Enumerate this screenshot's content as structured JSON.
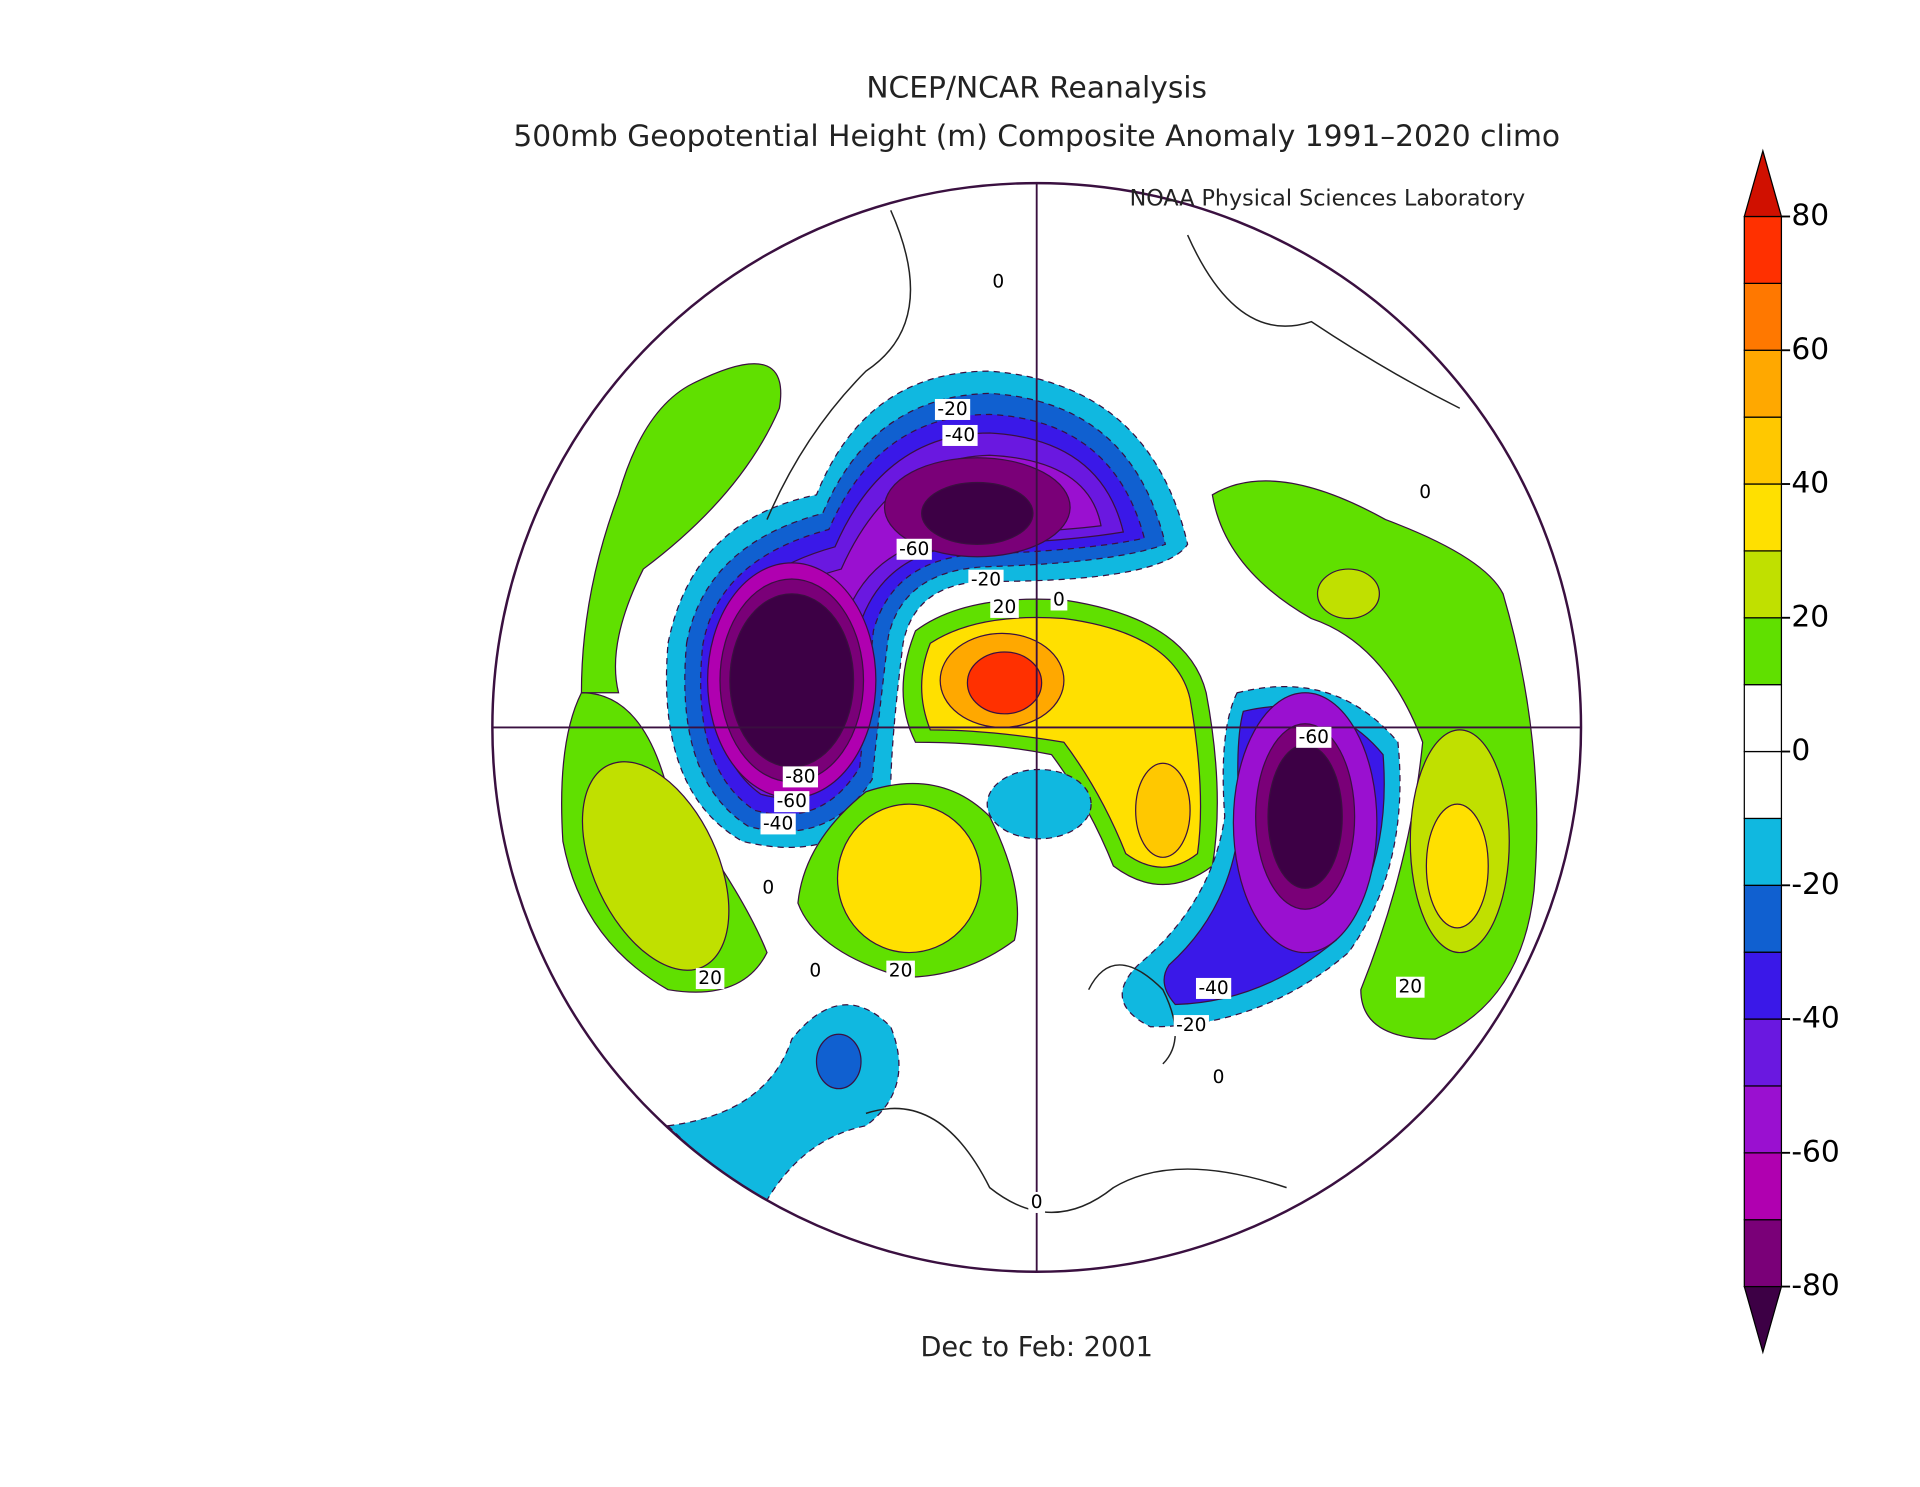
{
  "map": {
    "title": "NCEP/NCAR Reanalysis",
    "subtitle": "500mb Geopotential Height (m) Composite Anomaly 1991–2020 climo",
    "credit": "NOAA Physical Sciences Laboratory",
    "caption": "Dec to Feb: 2001",
    "contour_labels": [
      -20,
      -40,
      -60,
      -20,
      20,
      0,
      -80,
      -60,
      -40,
      0,
      20,
      20,
      -60,
      -40,
      -20,
      0,
      20,
      0,
      0,
      0,
      0
    ],
    "colorbar": {
      "levels": [
        -80,
        -70,
        -60,
        -50,
        -40,
        -30,
        -20,
        -10,
        0,
        10,
        20,
        30,
        40,
        50,
        60,
        70,
        80
      ],
      "colors": [
        "#7a0078",
        "#b000b0",
        "#9a10d0",
        "#6a18e0",
        "#3a18e8",
        "#1060d0",
        "#10b8e0",
        "#ffffff",
        "#ffffff",
        "#60e000",
        "#c0e000",
        "#ffe000",
        "#ffc800",
        "#ffa800",
        "#ff7800",
        "#ff3000"
      ],
      "under_color": "#3d0045",
      "over_color": "#d01000",
      "ticks": [
        -80,
        -60,
        -40,
        -20,
        0,
        20,
        40,
        60,
        80
      ]
    }
  }
}
